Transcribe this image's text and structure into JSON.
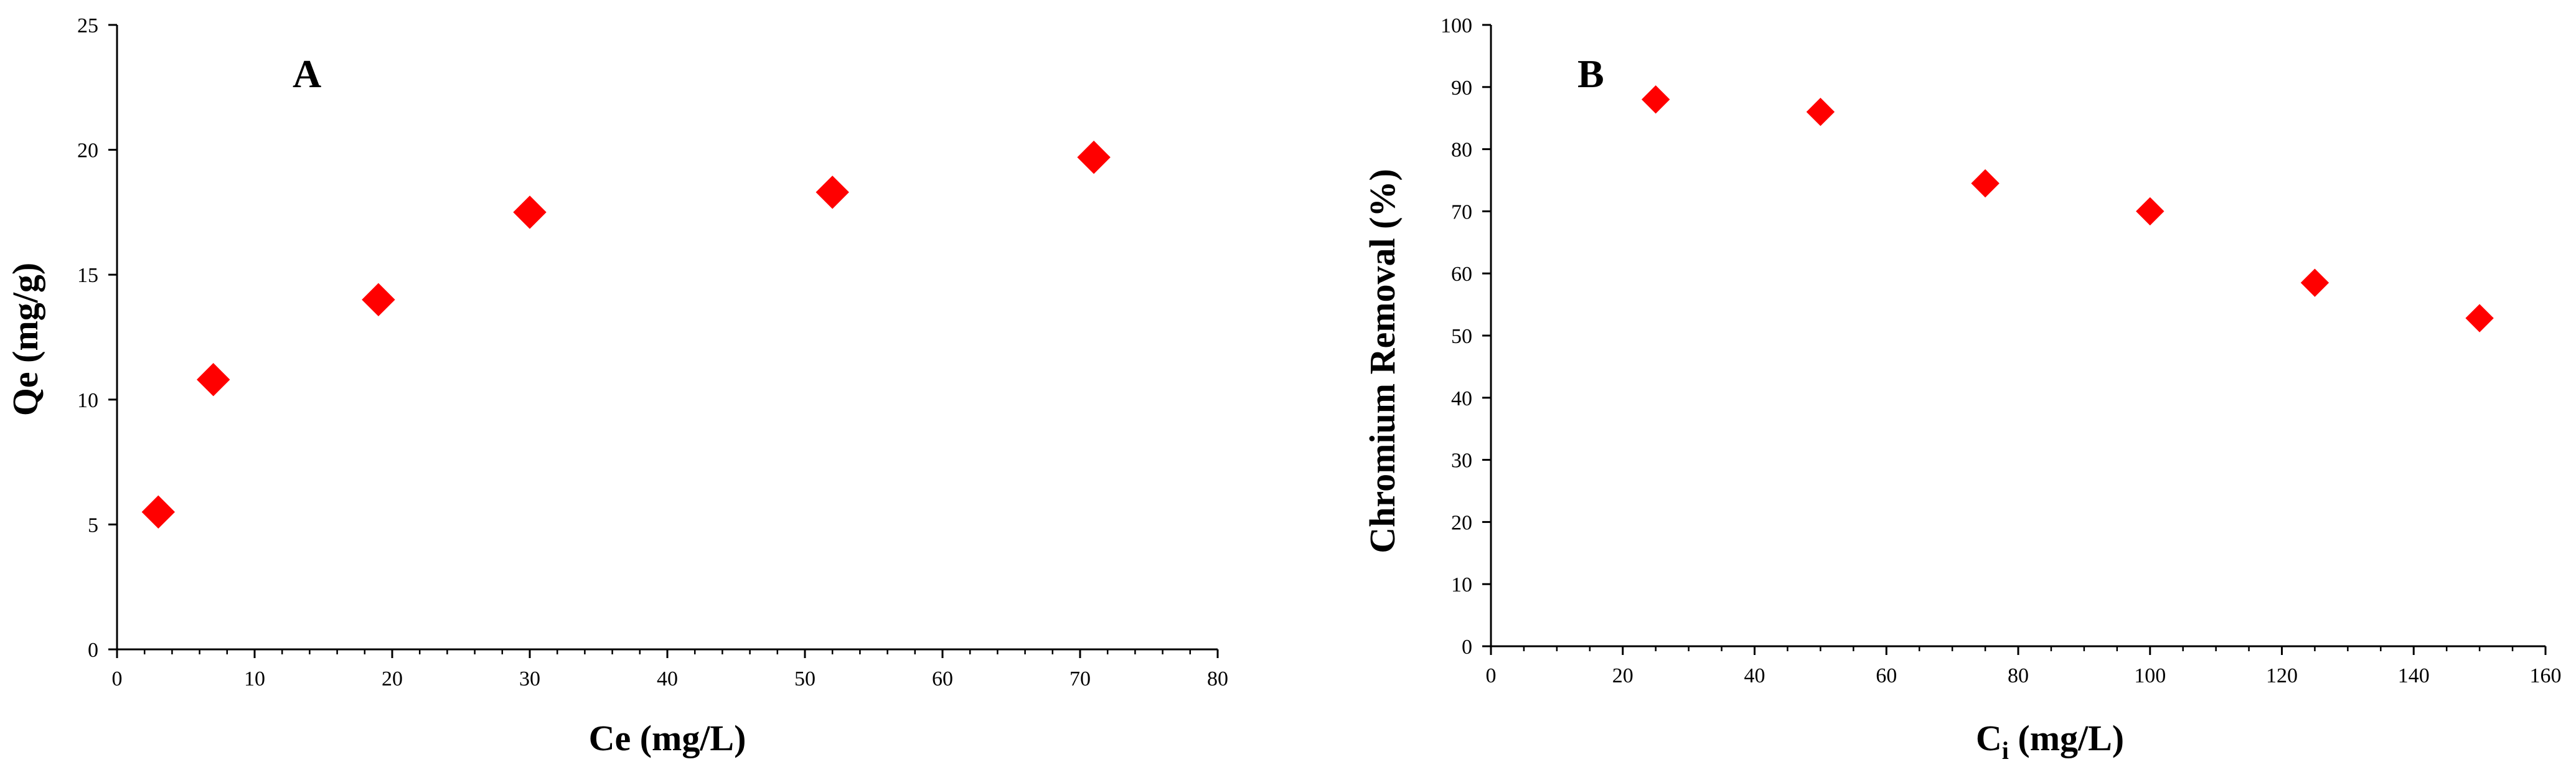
{
  "chart_data": [
    {
      "panel": "A",
      "type": "scatter",
      "xlabel": "Ce (mg/L)",
      "ylabel": "Qe (mg/g)",
      "xlim": [
        0,
        80
      ],
      "ylim": [
        0,
        25
      ],
      "xticks": [
        0,
        10,
        20,
        30,
        40,
        50,
        60,
        70,
        80
      ],
      "yticks": [
        0,
        5,
        10,
        15,
        20,
        25
      ],
      "grid": false,
      "marker_color": "#ff0000",
      "marker": "diamond",
      "series": [
        {
          "x": [
            3,
            7,
            19,
            30,
            52,
            71
          ],
          "y": [
            5.5,
            10.8,
            14.0,
            17.5,
            18.3,
            19.7
          ]
        }
      ]
    },
    {
      "panel": "B",
      "type": "scatter",
      "xlabel_main": "C",
      "xlabel_sub": "i",
      "xlabel_rest": " (mg/L)",
      "ylabel": "Chromium Removal (%)",
      "xlim": [
        0,
        160
      ],
      "ylim": [
        0,
        100
      ],
      "xticks": [
        0,
        20,
        40,
        60,
        80,
        100,
        120,
        140,
        160
      ],
      "yticks": [
        0,
        10,
        20,
        30,
        40,
        50,
        60,
        70,
        80,
        90,
        100
      ],
      "grid": false,
      "marker_color": "#ff0000",
      "marker": "diamond",
      "series": [
        {
          "x": [
            25,
            50,
            75,
            100,
            125,
            150
          ],
          "y": [
            88,
            86,
            74.5,
            70,
            58.5,
            52.8
          ]
        }
      ]
    }
  ]
}
